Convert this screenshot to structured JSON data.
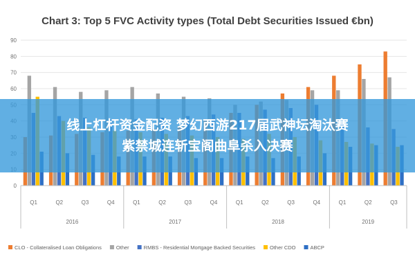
{
  "chart_data": {
    "type": "bar",
    "title": "Chart 3: Top 5 FVC Activity types (Total Debt Securities Issued €bn)",
    "ylim": [
      0,
      90
    ],
    "yticks": [
      "0",
      "10",
      "20",
      "30",
      "40",
      "50",
      "60",
      "70",
      "80",
      "90"
    ],
    "grid": true,
    "legend_position": "bottom",
    "categories": [
      "Q1",
      "Q2",
      "Q3",
      "Q4",
      "Q1",
      "Q2",
      "Q3",
      "Q4",
      "Q1",
      "Q2",
      "Q3",
      "Q4",
      "Q1",
      "Q2",
      "Q3"
    ],
    "years": [
      {
        "label": "2016",
        "quarters": 4
      },
      {
        "label": "2017",
        "quarters": 4
      },
      {
        "label": "2018",
        "quarters": 4
      },
      {
        "label": "2019",
        "quarters": 3
      }
    ],
    "series": [
      {
        "name": "CLO - Collateralised Loan Obligations",
        "color": "#ED7D31",
        "values": [
          30,
          31,
          32,
          33,
          34,
          35,
          37,
          40,
          45,
          50,
          57,
          61,
          68,
          75,
          83
        ]
      },
      {
        "name": "Other",
        "color": "#A5A5A5",
        "values": [
          68,
          61,
          58,
          59,
          61,
          57,
          55,
          54,
          50,
          52,
          53,
          59,
          59,
          66,
          67
        ]
      },
      {
        "name": "RMBS - Residential Mortgage Backed Securities",
        "color": "#4472C4",
        "values": [
          45,
          43,
          42,
          41,
          41,
          42,
          43,
          44,
          45,
          47,
          48,
          50,
          40,
          36,
          35
        ]
      },
      {
        "name": "Other CDO",
        "color": "#FFC000",
        "values": [
          55,
          40,
          36,
          34,
          33,
          32,
          31,
          30,
          29,
          32,
          30,
          28,
          27,
          26,
          24
        ]
      },
      {
        "name": "ABCP",
        "color": "#2E6FC4",
        "values": [
          21,
          20,
          19,
          18,
          18,
          18,
          17,
          17,
          18,
          17,
          18,
          20,
          24,
          25,
          25
        ]
      }
    ]
  },
  "banner": {
    "line1": "线上杠杆资金配资 梦幻西游217届武神坛淘汰赛",
    "line2": "紫禁城连斩宝阁曲阜杀入决赛"
  }
}
